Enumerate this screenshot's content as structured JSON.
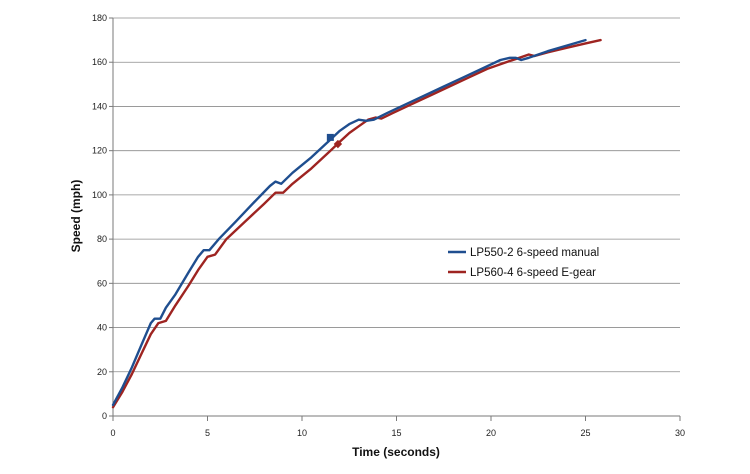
{
  "chart_data": {
    "type": "line",
    "title": "",
    "xlabel": "Time (seconds)",
    "ylabel": "Speed (mph)",
    "xlim": [
      0,
      30
    ],
    "ylim": [
      0,
      180
    ],
    "x_ticks": [
      0,
      5,
      10,
      15,
      20,
      25,
      30
    ],
    "y_ticks": [
      0,
      20,
      40,
      60,
      80,
      100,
      120,
      140,
      160,
      180
    ],
    "grid": "horizontal",
    "legend_position": "right",
    "series": [
      {
        "name": "LP550-2 6-speed manual",
        "color": "#1f4e8f",
        "marker": "square",
        "marker_point": {
          "x": 11.5,
          "y": 126
        },
        "points": [
          [
            0,
            5
          ],
          [
            0.5,
            13
          ],
          [
            1.0,
            22
          ],
          [
            1.5,
            32
          ],
          [
            2.0,
            42
          ],
          [
            2.2,
            44
          ],
          [
            2.5,
            44
          ],
          [
            2.8,
            49
          ],
          [
            3.3,
            55
          ],
          [
            4.0,
            65
          ],
          [
            4.5,
            72
          ],
          [
            4.8,
            75
          ],
          [
            5.1,
            75
          ],
          [
            5.6,
            80
          ],
          [
            6.5,
            88
          ],
          [
            7.5,
            97
          ],
          [
            8.3,
            104
          ],
          [
            8.6,
            106
          ],
          [
            8.9,
            105
          ],
          [
            9.5,
            110
          ],
          [
            10.5,
            117
          ],
          [
            11.5,
            125
          ],
          [
            12.0,
            129
          ],
          [
            12.5,
            132
          ],
          [
            13.0,
            134
          ],
          [
            13.4,
            133.5
          ],
          [
            13.8,
            134
          ],
          [
            14.5,
            137
          ],
          [
            15.5,
            141
          ],
          [
            16.5,
            145
          ],
          [
            17.5,
            149
          ],
          [
            18.5,
            153
          ],
          [
            19.5,
            157
          ],
          [
            20.5,
            161
          ],
          [
            21.0,
            162
          ],
          [
            21.3,
            162
          ],
          [
            21.6,
            161
          ],
          [
            22.0,
            162
          ],
          [
            23.0,
            165
          ],
          [
            24.0,
            167.5
          ],
          [
            25.0,
            170
          ]
        ]
      },
      {
        "name": "LP560-4 6-speed E-gear",
        "color": "#9e2421",
        "marker": "diamond",
        "marker_point": {
          "x": 11.9,
          "y": 123
        },
        "points": [
          [
            0,
            4
          ],
          [
            0.5,
            11
          ],
          [
            1.0,
            19
          ],
          [
            1.5,
            28
          ],
          [
            2.0,
            37
          ],
          [
            2.4,
            42
          ],
          [
            2.8,
            43
          ],
          [
            3.3,
            50
          ],
          [
            4.0,
            59
          ],
          [
            4.5,
            66
          ],
          [
            5.0,
            72
          ],
          [
            5.4,
            73
          ],
          [
            6.0,
            80
          ],
          [
            7.0,
            88
          ],
          [
            8.0,
            96
          ],
          [
            8.6,
            101
          ],
          [
            9.0,
            101
          ],
          [
            9.5,
            105
          ],
          [
            10.5,
            112
          ],
          [
            11.5,
            120
          ],
          [
            12.0,
            124
          ],
          [
            12.5,
            128
          ],
          [
            13.0,
            131
          ],
          [
            13.5,
            134
          ],
          [
            13.9,
            135
          ],
          [
            14.2,
            134.5
          ],
          [
            14.8,
            137
          ],
          [
            15.8,
            141
          ],
          [
            16.8,
            145
          ],
          [
            17.8,
            149
          ],
          [
            18.8,
            153
          ],
          [
            19.8,
            157
          ],
          [
            20.8,
            160
          ],
          [
            21.5,
            162
          ],
          [
            22.0,
            163.5
          ],
          [
            22.3,
            162.8
          ],
          [
            23.0,
            164.5
          ],
          [
            24.0,
            166.5
          ],
          [
            25.0,
            168.5
          ],
          [
            25.8,
            170
          ]
        ]
      }
    ]
  }
}
